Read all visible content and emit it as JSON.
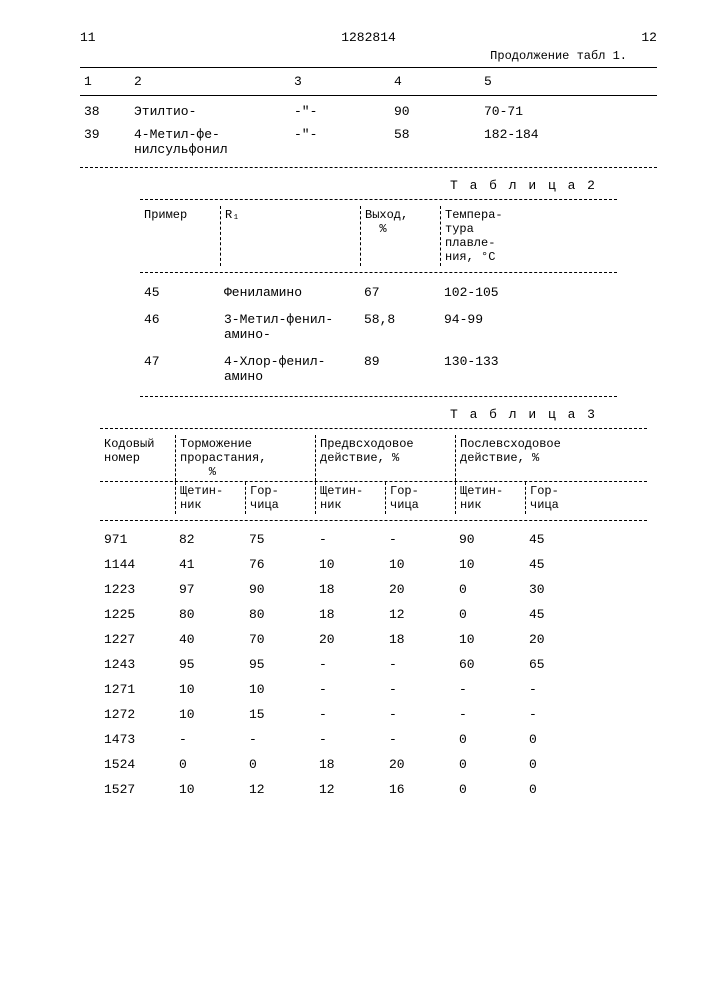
{
  "header": {
    "left_page": "11",
    "doc_number": "1282814",
    "right_page": "12",
    "continuation": "Продолжение табл 1."
  },
  "table1": {
    "col_headers": [
      "1",
      "2",
      "3",
      "4",
      "5"
    ],
    "rows": [
      {
        "c1": "38",
        "c2": "Этилтио-",
        "c3": "-\"-",
        "c4": "90",
        "c5": "70-71"
      },
      {
        "c1": "39",
        "c2": "4-Метил-фе-\nнилсульфонил",
        "c3": "-\"-",
        "c4": "58",
        "c5": "182-184"
      }
    ]
  },
  "table2": {
    "title": "Т а б л и ц а  2",
    "headers": {
      "h1": "Пример",
      "h2": "R₁",
      "h3": "Выход,\n  %",
      "h4": "Темпера-\nтура\nплавле-\nния, °C"
    },
    "rows": [
      {
        "c1": "45",
        "c2": "Фениламино",
        "c3": "67",
        "c4": "102-105"
      },
      {
        "c1": "46",
        "c2": "3-Метил-фенил-\nамино-",
        "c3": "58,8",
        "c4": "94-99"
      },
      {
        "c1": "47",
        "c2": "4-Хлор-фенил-\nамино",
        "c3": "89",
        "c4": "130-133"
      }
    ]
  },
  "table3": {
    "title": "Т а б л и ц а  3",
    "headers1": {
      "h1": "Кодовый\nномер",
      "h2": "Торможение\nпрорастания,\n    %",
      "h3": "Предвсходовое\nдействие, %",
      "h4": "Послевсходовое\nдействие, %"
    },
    "headers2": {
      "s1": "Щетин-\nник",
      "s2": "Гор-\nчица",
      "s3": "Щетин-\nник",
      "s4": "Гор-\nчица",
      "s5": "Щетин-\nник",
      "s6": "Гор-\nчица"
    },
    "rows": [
      {
        "c0": "971",
        "c1": "82",
        "c2": "75",
        "c3": "-",
        "c4": "-",
        "c5": "90",
        "c6": "45"
      },
      {
        "c0": "1144",
        "c1": "41",
        "c2": "76",
        "c3": "10",
        "c4": "10",
        "c5": "10",
        "c6": "45"
      },
      {
        "c0": "1223",
        "c1": "97",
        "c2": "90",
        "c3": "18",
        "c4": "20",
        "c5": "0",
        "c6": "30"
      },
      {
        "c0": "1225",
        "c1": "80",
        "c2": "80",
        "c3": "18",
        "c4": "12",
        "c5": "0",
        "c6": "45"
      },
      {
        "c0": "1227",
        "c1": "40",
        "c2": "70",
        "c3": "20",
        "c4": "18",
        "c5": "10",
        "c6": "20"
      },
      {
        "c0": "1243",
        "c1": "95",
        "c2": "95",
        "c3": "-",
        "c4": "-",
        "c5": "60",
        "c6": "65"
      },
      {
        "c0": "1271",
        "c1": "10",
        "c2": "10",
        "c3": "-",
        "c4": "-",
        "c5": "-",
        "c6": "-"
      },
      {
        "c0": "1272",
        "c1": "10",
        "c2": "15",
        "c3": "-",
        "c4": "-",
        "c5": "-",
        "c6": "-"
      },
      {
        "c0": "1473",
        "c1": "-",
        "c2": "-",
        "c3": "-",
        "c4": "-",
        "c5": "0",
        "c6": "0"
      },
      {
        "c0": "1524",
        "c1": "0",
        "c2": "0",
        "c3": "18",
        "c4": "20",
        "c5": "0",
        "c6": "0"
      },
      {
        "c0": "1527",
        "c1": "10",
        "c2": "12",
        "c3": "12",
        "c4": "16",
        "c5": "0",
        "c6": "0"
      }
    ]
  }
}
